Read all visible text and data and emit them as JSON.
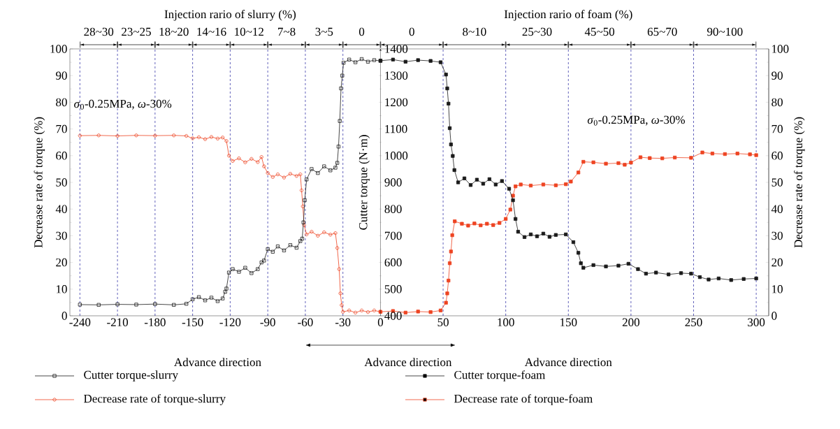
{
  "chart_data": {
    "type": "line",
    "xlabel": null,
    "ylabel": "Decrease rate of torque (%)",
    "y2label": "Decrease rate of torque (%)",
    "y3label": "Cutter torque (N·m)",
    "xlim": [
      -248,
      310
    ],
    "xticks": [
      -240,
      -210,
      -180,
      -150,
      -120,
      -90,
      -60,
      -30,
      0,
      50,
      100,
      150,
      200,
      250,
      300
    ],
    "ylim": [
      0,
      100
    ],
    "yticks": [
      0,
      10,
      20,
      30,
      40,
      50,
      60,
      70,
      80,
      90,
      100
    ],
    "y2lim": [
      0,
      100
    ],
    "y2ticks": [
      0,
      10,
      20,
      30,
      40,
      50,
      60,
      70,
      80,
      90,
      100
    ],
    "y3lim": [
      400,
      1400
    ],
    "y3ticks": [
      400,
      500,
      600,
      700,
      800,
      900,
      1000,
      1100,
      1200,
      1300,
      1400
    ],
    "legend": "bottom",
    "line_style": "solid",
    "grid": false,
    "series": [
      {
        "name": "Cutter torque-slurry",
        "color": "#1a1a1a",
        "axis": "y3",
        "marker": "square",
        "x": [
          -240,
          -225,
          -210,
          -195,
          -180,
          -165,
          -155,
          -150,
          -145,
          -140,
          -135,
          -130,
          -126,
          -124,
          -123,
          -121,
          -118,
          -113,
          -108,
          -103,
          -98,
          -95,
          -93,
          -90,
          -86,
          -82,
          -77,
          -72,
          -67,
          -64,
          -62.5,
          -61.5,
          -60.5,
          -59,
          -55,
          -50,
          -45,
          -40,
          -36,
          -34.5,
          -33.5,
          -32.5,
          -31.5,
          -30.5,
          -29.5,
          -25,
          -20,
          -15,
          -10,
          -5,
          0
        ],
        "values": [
          442,
          441,
          443,
          442,
          444,
          441,
          445,
          462,
          470,
          458,
          468,
          455,
          465,
          490,
          502,
          562,
          575,
          565,
          580,
          560,
          575,
          600,
          607,
          650,
          640,
          660,
          645,
          665,
          655,
          680,
          689,
          750,
          833,
          911,
          950,
          935,
          960,
          945,
          955,
          973,
          1034,
          1130,
          1252,
          1300,
          1348,
          1360,
          1350,
          1362,
          1352,
          1358,
          1355
        ]
      },
      {
        "name": "Cutter torque-foam",
        "color": "#1a1a1a",
        "axis": "y3",
        "marker": "square",
        "x": [
          0,
          10,
          20,
          30,
          40,
          48,
          52.3,
          53.3,
          54.3,
          55.3,
          56.3,
          57.7,
          59,
          62,
          67,
          72,
          77,
          82,
          87,
          92,
          97,
          102.7,
          105.8,
          107.8,
          109.9,
          115,
          120,
          125,
          130,
          135,
          140,
          148,
          154,
          158,
          160,
          162,
          170,
          180,
          190,
          198,
          205.6,
          212,
          220,
          230,
          240,
          248,
          255,
          262,
          270,
          280,
          290,
          300
        ],
        "values": [
          1356,
          1360,
          1352,
          1358,
          1355,
          1350,
          1304,
          1252,
          1195,
          1103,
          1042,
          999,
          946,
          900,
          915,
          890,
          910,
          895,
          912,
          892,
          905,
          876,
          833,
          763,
          715,
          695,
          705,
          698,
          708,
          696,
          703,
          705,
          676,
          636,
          597,
          580,
          590,
          585,
          588,
          595,
          575,
          558,
          562,
          555,
          560,
          558,
          545,
          536,
          540,
          534,
          538,
          540
        ]
      },
      {
        "name": "Decrease rate of torque-slurry",
        "color": "#ee4422",
        "marker": "circle",
        "x": [
          -240,
          -225,
          -210,
          -195,
          -180,
          -165,
          -155,
          -150,
          -145,
          -140,
          -135,
          -130,
          -126,
          -123,
          -121,
          -118,
          -113,
          -108,
          -103,
          -98,
          -95,
          -93,
          -90,
          -86,
          -82,
          -77,
          -72,
          -67,
          -64,
          -63,
          -62,
          -61,
          -59,
          -55,
          -50,
          -45,
          -40,
          -36,
          -34.5,
          -33,
          -32,
          -31,
          -30,
          -25,
          -20,
          -15,
          -10,
          -5,
          0
        ],
        "values": [
          67.5,
          67.6,
          67.4,
          67.6,
          67.5,
          67.6,
          67.4,
          66.5,
          66.9,
          66.2,
          67.0,
          66.4,
          66.8,
          65.5,
          60,
          58.0,
          59.0,
          57.5,
          58.8,
          57.6,
          59.5,
          56,
          53.5,
          52.0,
          53.0,
          51.8,
          53.2,
          52.4,
          53.0,
          47,
          41,
          34,
          30.5,
          31.5,
          30.0,
          31.3,
          30.4,
          31.0,
          25.4,
          17.5,
          8.4,
          4,
          1.5,
          2,
          1.2,
          2.0,
          1.4,
          2.0,
          1.5
        ]
      },
      {
        "name": "Decrease rate of torque-foam",
        "color": "#ee4422",
        "marker": "square",
        "x": [
          0,
          10,
          20,
          30,
          40,
          48,
          52.3,
          53.3,
          54.3,
          55.3,
          56.3,
          57.3,
          59.3,
          65,
          70,
          75,
          80,
          85,
          90,
          95,
          100,
          103.7,
          105.8,
          107.8,
          112,
          120,
          130,
          140,
          148,
          152,
          158,
          162,
          170,
          180,
          190,
          195,
          200,
          207.6,
          215,
          225,
          235,
          248,
          257,
          265,
          275,
          285,
          295,
          300
        ],
        "values": [
          1.5,
          1.8,
          1.2,
          1.6,
          1.4,
          2.0,
          4.9,
          8.4,
          13.2,
          19.7,
          24.1,
          30.2,
          35.4,
          34.5,
          33.8,
          34.6,
          33.9,
          34.5,
          34.0,
          34.8,
          36.3,
          39.8,
          45,
          48.5,
          49.2,
          48.8,
          49.2,
          48.9,
          49.3,
          50.3,
          53.7,
          57.7,
          57.5,
          57.0,
          57.2,
          56.6,
          57.4,
          59.4,
          59.1,
          59.0,
          59.3,
          59.2,
          61.2,
          60.8,
          60.6,
          60.8,
          60.5,
          60.2
        ]
      }
    ],
    "ref_lines": [
      {
        "axis": "x",
        "value": -240,
        "color": "#3a3aaa",
        "line_style": "dashed"
      },
      {
        "axis": "x",
        "value": -210,
        "color": "#3a3aaa",
        "line_style": "dashed"
      },
      {
        "axis": "x",
        "value": -180,
        "color": "#3a3aaa",
        "line_style": "dashed"
      },
      {
        "axis": "x",
        "value": -150,
        "color": "#3a3aaa",
        "line_style": "dashed"
      },
      {
        "axis": "x",
        "value": -120,
        "color": "#3a3aaa",
        "line_style": "dashed"
      },
      {
        "axis": "x",
        "value": -90,
        "color": "#3a3aaa",
        "line_style": "dashed"
      },
      {
        "axis": "x",
        "value": -60,
        "color": "#3a3aaa",
        "line_style": "dashed"
      },
      {
        "axis": "x",
        "value": -30,
        "color": "#3a3aaa",
        "line_style": "dashed"
      },
      {
        "axis": "x",
        "value": 50,
        "color": "#3a3aaa",
        "line_style": "dashed"
      },
      {
        "axis": "x",
        "value": 100,
        "color": "#3a3aaa",
        "line_style": "dashed"
      },
      {
        "axis": "x",
        "value": 150,
        "color": "#3a3aaa",
        "line_style": "dashed"
      },
      {
        "axis": "x",
        "value": 200,
        "color": "#3a3aaa",
        "line_style": "dashed"
      },
      {
        "axis": "x",
        "value": 250,
        "color": "#3a3aaa",
        "line_style": "dashed"
      },
      {
        "axis": "x",
        "value": 300,
        "color": "#3a3aaa",
        "line_style": "dashed"
      }
    ],
    "annotations": [
      "Injection rario of slurry (%)",
      "Injection rario of foam (%)",
      "Advance direction",
      "Advance direction",
      "Advance direction",
      "*σ*$_{0}$-0.25MPa, *ω*-30%",
      "*σ*$_{0}$-0.25MPa, *ω*-30%",
      "28~30",
      "23~25",
      "18~20",
      "14~16",
      "10~12",
      "7~8",
      "3~5",
      "0",
      "0",
      "8~10",
      "25~30",
      "45~50",
      "65~70",
      "90~100"
    ]
  }
}
